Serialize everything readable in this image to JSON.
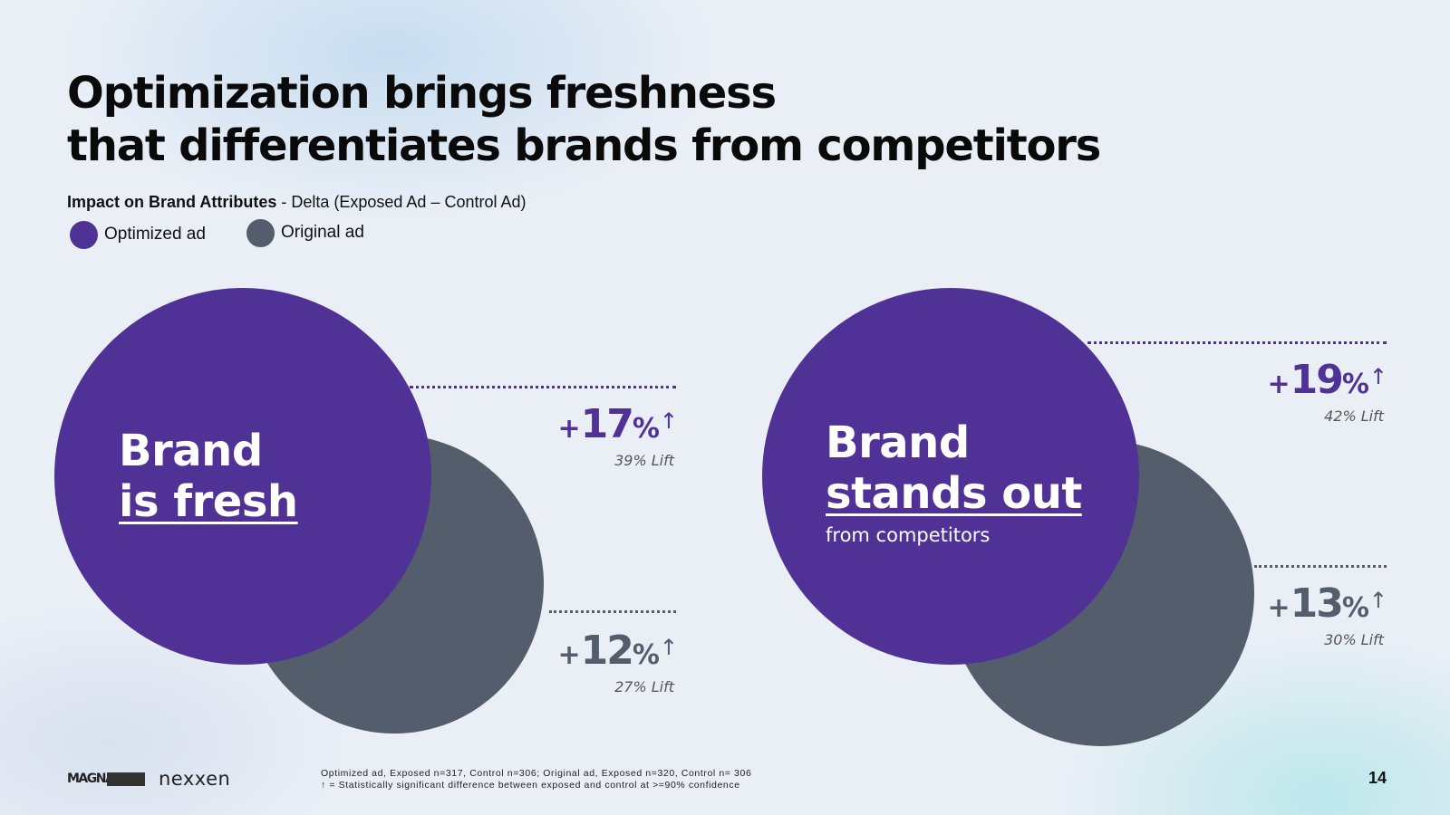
{
  "title": {
    "line1": "Optimization brings freshness",
    "line2": "that differentiates brands from competitors"
  },
  "subtitle": {
    "bold": "Impact on Brand Attributes",
    "rest": " - Delta (Exposed Ad – Control Ad)"
  },
  "legend": [
    {
      "label": "Optimized ad",
      "color": "#503296"
    },
    {
      "label": "Original ad",
      "color": "#545d6b"
    }
  ],
  "chart_data": [
    {
      "type": "bubble-comparison",
      "title": "Brand is fresh",
      "label_line1": "Brand",
      "label_line2": "is fresh",
      "label_line3": "",
      "series": [
        {
          "name": "Optimized ad",
          "prefix": "+",
          "value": 17,
          "value_text": "17",
          "suffix": "%",
          "significant": true,
          "lift": "39% Lift",
          "color": "#503296"
        },
        {
          "name": "Original ad",
          "prefix": "+",
          "value": 12,
          "value_text": "12",
          "suffix": "%",
          "significant": true,
          "lift": "27% Lift",
          "color": "#545d6b"
        }
      ]
    },
    {
      "type": "bubble-comparison",
      "title": "Brand stands out from competitors",
      "label_line1": "Brand",
      "label_line2": "stands out",
      "label_line3": "from competitors",
      "series": [
        {
          "name": "Optimized ad",
          "prefix": "+",
          "value": 19,
          "value_text": "19",
          "suffix": "%",
          "significant": true,
          "lift": "42% Lift",
          "color": "#503296"
        },
        {
          "name": "Original ad",
          "prefix": "+",
          "value": 13,
          "value_text": "13",
          "suffix": "%",
          "significant": true,
          "lift": "30% Lift",
          "color": "#545d6b"
        }
      ]
    }
  ],
  "significance_marker": "↑",
  "footnote": {
    "line1": "Optimized ad, Exposed n=317, Control n=306; Original ad, Exposed n=320, Control n= 306",
    "line2": "↑ = Statistically significant difference between exposed and control at >=90% confidence"
  },
  "logos": {
    "magna": "MAGNA",
    "nexxen": "nexxen"
  },
  "page_number": "14"
}
